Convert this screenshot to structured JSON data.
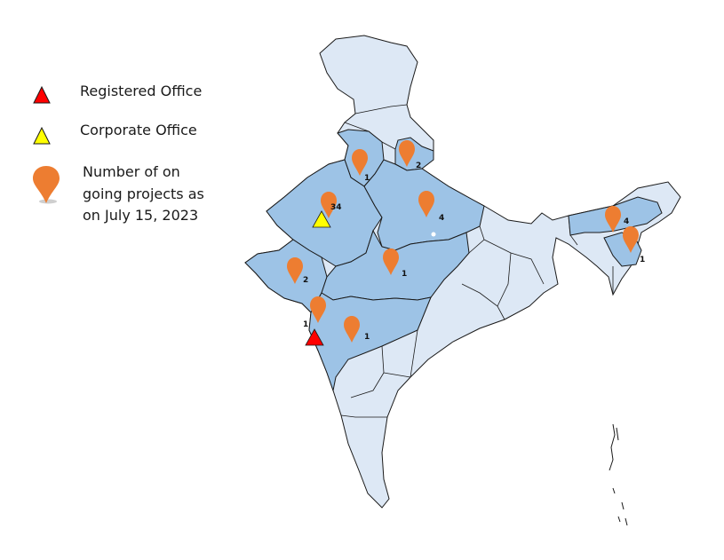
{
  "legend": {
    "registered_office": "Registered Office",
    "corporate_office": "Corporate Office",
    "ongoing_projects_line1": "Number of on",
    "ongoing_projects_line2": "going projects as",
    "ongoing_projects_line3": "on July 15, 2023"
  },
  "colors": {
    "highlighted_state": "#9dc3e6",
    "other_state": "#dde8f5",
    "border": "#1a1a1a",
    "pin": "#ed7d31",
    "registered_office": "#ff0000",
    "corporate_office": "#ffff00"
  },
  "markers": {
    "punjab": "1",
    "uttarakhand": "2",
    "rajasthan": "34",
    "uttar_pradesh": "4",
    "gujarat": "2",
    "madhya_pradesh": "1",
    "dadra_nagar_haveli": "1",
    "maharashtra": "1",
    "assam": "4",
    "meghalaya": "1"
  },
  "icons": {
    "registered_office": "red-triangle-icon",
    "corporate_office": "yellow-triangle-icon",
    "pin": "orange-map-pin-icon"
  }
}
